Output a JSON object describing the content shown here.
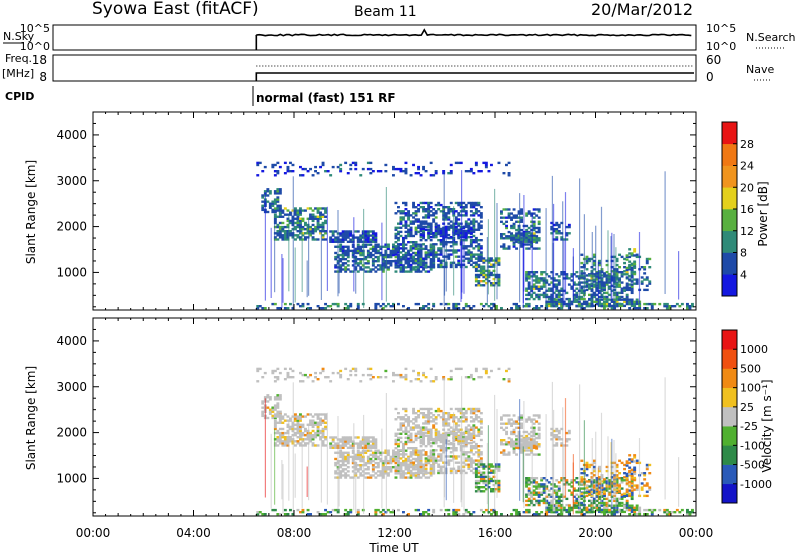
{
  "header": {
    "station": "Syowa East (fitACF)",
    "beam": "Beam 11",
    "date": "20/Mar/2012"
  },
  "summary_panels": {
    "nsky_label": "N.Sky",
    "nsky_ticks": [
      "10^5",
      "10^0"
    ],
    "nsearch_label": "N.Search",
    "nsearch_ticks": [
      "10^5",
      "10^0"
    ],
    "freq_label": "Freq.",
    "freq_unit": "[MHz]",
    "freq_ticks": [
      "18",
      "8"
    ],
    "nave_label": "Nave",
    "nave_ticks": [
      "60",
      "0"
    ],
    "cpid_label": "CPID",
    "cpid_text": "normal (fast) 151 RF",
    "data_start_hour": 6.5
  },
  "chart_data": [
    {
      "type": "heatmap",
      "name": "power",
      "ylabel": "Slant Range [km]",
      "xlabel": "",
      "xlim": [
        0,
        24
      ],
      "ylim": [
        180,
        4500
      ],
      "yticks": [
        "1000",
        "2000",
        "3000",
        "4000"
      ],
      "colorbar_label": "Power [dB]",
      "colorbar_ticks": [
        "4",
        "8",
        "12",
        "16",
        "20",
        "24",
        "28"
      ],
      "colorbar_colors": [
        "#1418e0",
        "#1e4aa8",
        "#2f8a78",
        "#58b040",
        "#e4d01c",
        "#f0941e",
        "#f07814",
        "#e81414"
      ]
    },
    {
      "type": "heatmap",
      "name": "velocity",
      "ylabel": "Slant Range [km]",
      "xlabel": "Time UT",
      "xlim": [
        0,
        24
      ],
      "ylim": [
        180,
        4500
      ],
      "yticks": [
        "1000",
        "2000",
        "3000",
        "4000"
      ],
      "xticks": [
        "00:00",
        "04:00",
        "08:00",
        "12:00",
        "16:00",
        "20:00",
        "00:00"
      ],
      "colorbar_label": "Velocity [m s⁻¹]",
      "colorbar_ticks": [
        "1000",
        "500",
        "100",
        "25",
        "-25",
        "-100",
        "-500",
        "-1000"
      ],
      "colorbar_colors": [
        "#1414c8",
        "#2a5ab8",
        "#2e8a48",
        "#50b030",
        "#c0c0c0",
        "#f0c020",
        "#f08a14",
        "#f05010",
        "#e81414"
      ]
    }
  ]
}
